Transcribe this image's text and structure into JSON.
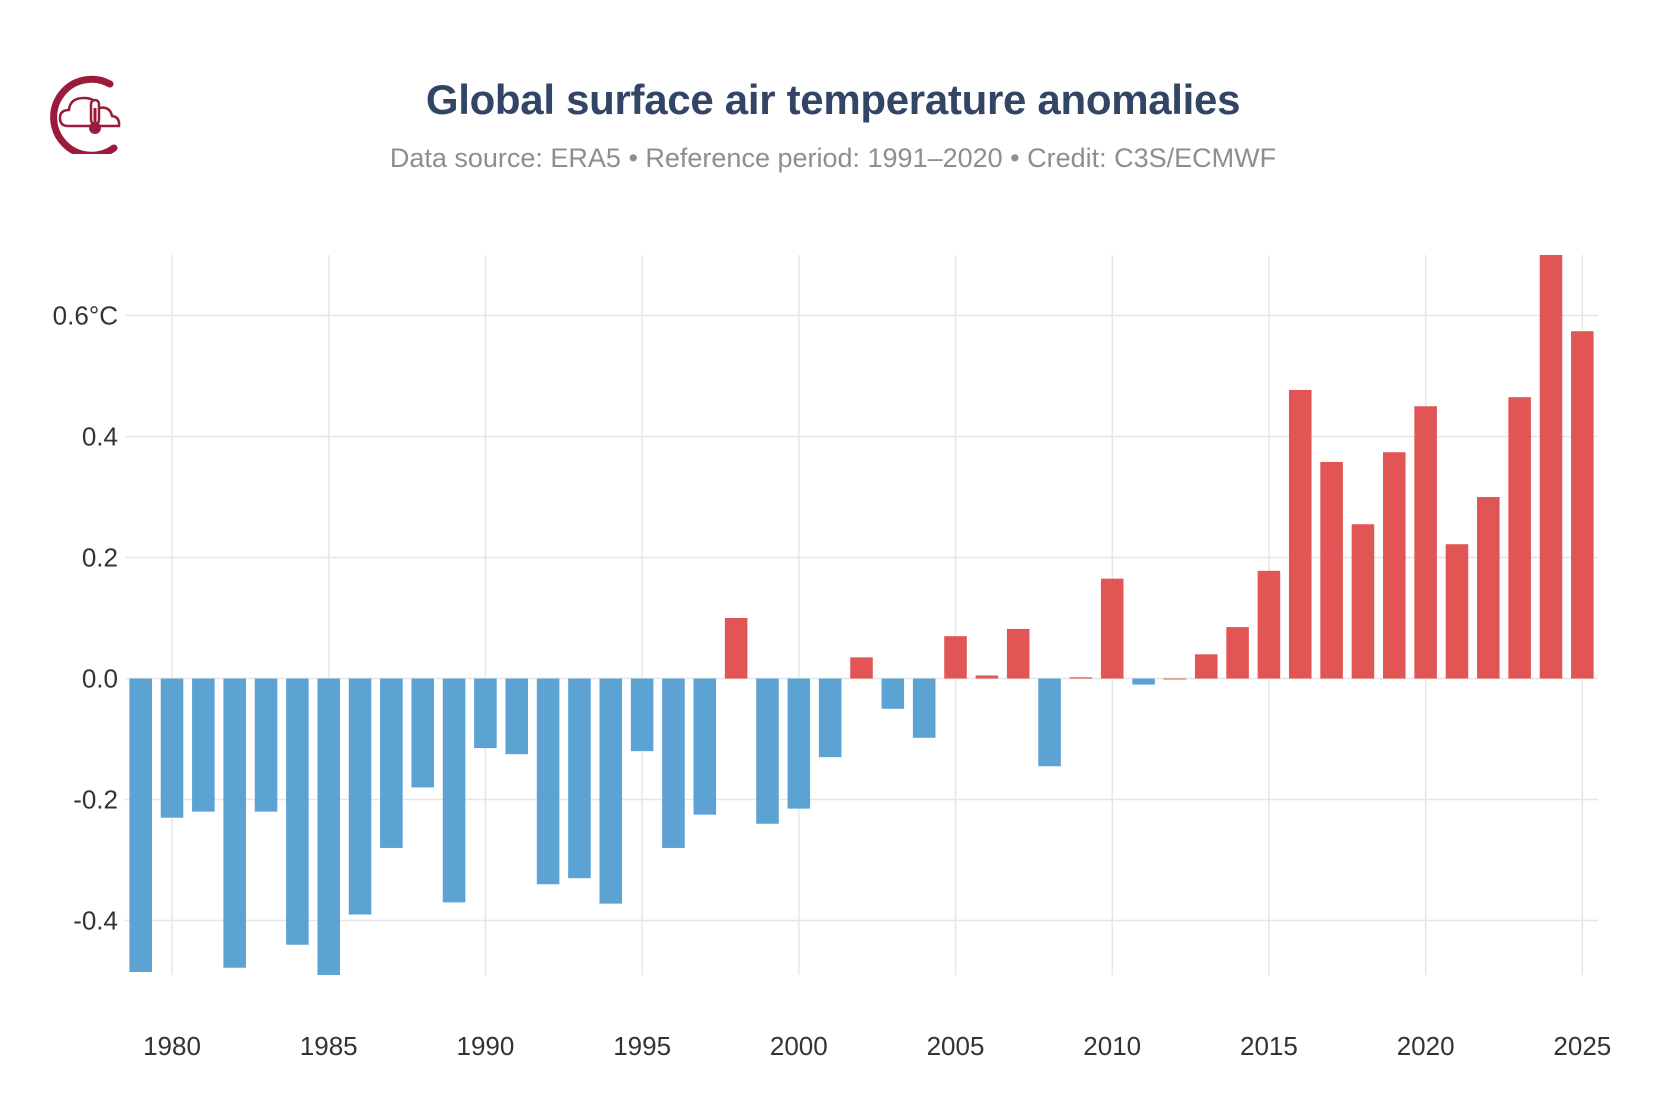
{
  "header": {
    "title": "Global surface air temperature anomalies",
    "subtitle": "Data source: ERA5 • Reference period: 1991–2020 • Credit: C3S/ECMWF"
  },
  "logo": {
    "icon": "cloud-thermometer-icon",
    "color": "#9b1c3a"
  },
  "colors": {
    "positive": "#e15554",
    "negative": "#5ca2d3",
    "grid": "#e6e6e6",
    "axis_text": "#333333"
  },
  "chart_data": {
    "type": "bar",
    "title": "Global surface air temperature anomalies",
    "xlabel": "",
    "ylabel": "°C",
    "grid": true,
    "xlim": [
      1978.5,
      2025.5
    ],
    "ylim": [
      -0.49,
      0.7
    ],
    "x_ticks": [
      1980,
      1985,
      1990,
      1995,
      2000,
      2005,
      2010,
      2015,
      2020,
      2025
    ],
    "x_tick_labels": [
      "1980",
      "1985",
      "1990",
      "1995",
      "2000",
      "2005",
      "2010",
      "2015",
      "2020",
      "2025"
    ],
    "y_ticks": [
      -0.4,
      -0.2,
      0.0,
      0.2,
      0.4,
      0.6
    ],
    "y_tick_labels": [
      "-0.4",
      "-0.2",
      "0.0",
      "0.2",
      "0.4",
      "0.6°C"
    ],
    "x": [
      1979,
      1980,
      1981,
      1982,
      1983,
      1984,
      1985,
      1986,
      1987,
      1988,
      1989,
      1990,
      1991,
      1992,
      1993,
      1994,
      1995,
      1996,
      1997,
      1998,
      1999,
      2000,
      2001,
      2002,
      2003,
      2004,
      2005,
      2006,
      2007,
      2008,
      2009,
      2010,
      2011,
      2012,
      2013,
      2014,
      2015,
      2016,
      2017,
      2018,
      2019,
      2020,
      2021,
      2022,
      2023,
      2024,
      2025
    ],
    "values": [
      -0.485,
      -0.23,
      -0.22,
      -0.478,
      -0.22,
      -0.44,
      -0.49,
      -0.39,
      -0.28,
      -0.18,
      -0.37,
      -0.115,
      -0.125,
      -0.34,
      -0.33,
      -0.372,
      -0.12,
      -0.28,
      -0.225,
      0.1,
      -0.24,
      -0.215,
      -0.13,
      0.035,
      -0.05,
      -0.098,
      0.07,
      0.005,
      0.082,
      -0.145,
      0.002,
      0.165,
      -0.01,
      0.0,
      0.04,
      0.085,
      0.178,
      0.477,
      0.358,
      0.255,
      0.374,
      0.45,
      0.222,
      0.3,
      0.465,
      0.7,
      0.574
    ]
  }
}
